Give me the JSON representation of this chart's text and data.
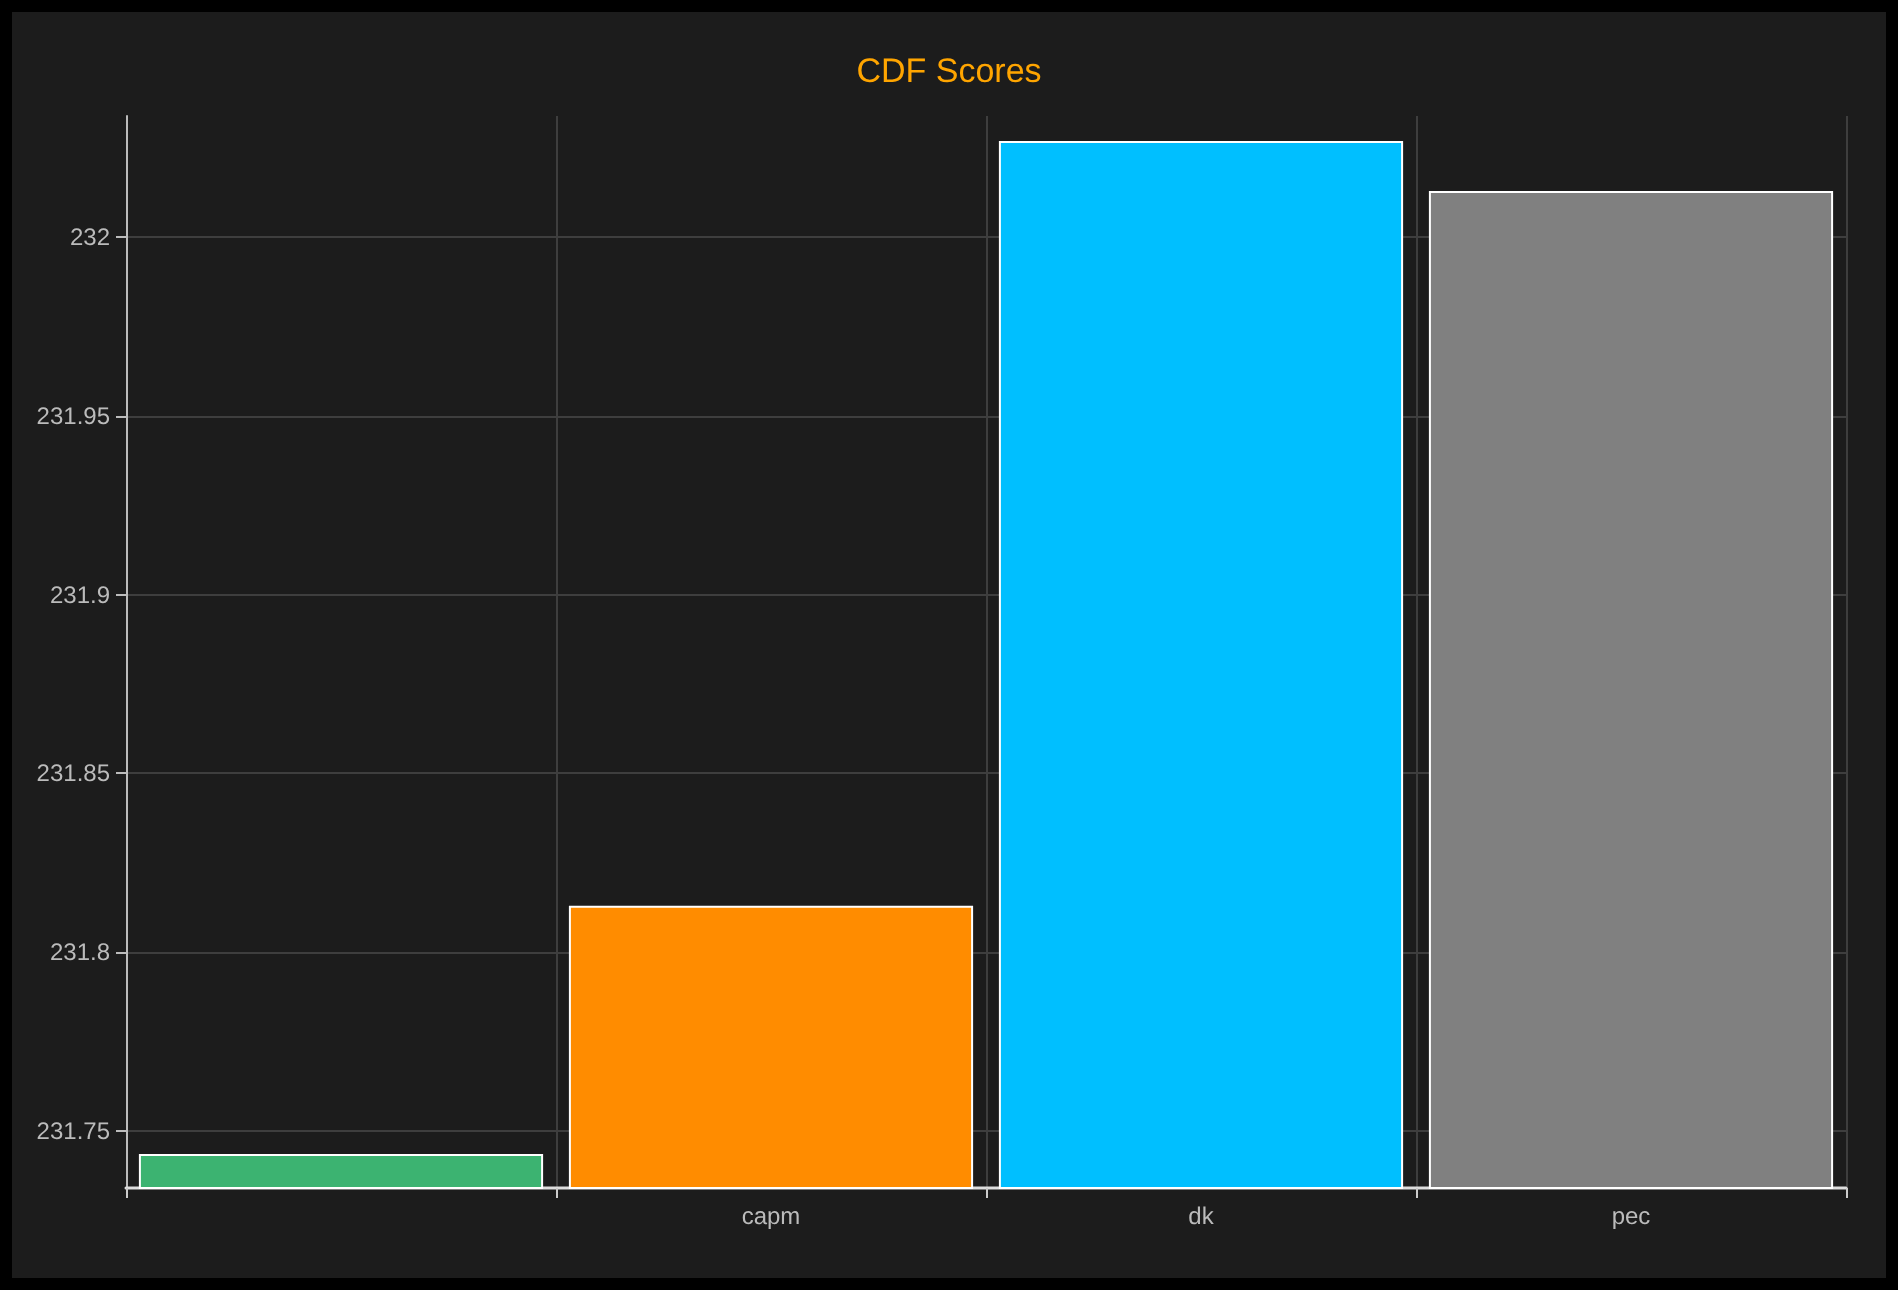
{
  "chart_data": {
    "type": "bar",
    "title": "CDF Scores",
    "categories": [
      null,
      "capm",
      "dk",
      "pec"
    ],
    "values": [
      231.7435,
      231.813,
      232.027,
      232.013
    ],
    "colors": [
      "#3cb371",
      "#ff8c00",
      "#00bfff",
      "#808080"
    ],
    "ylim": [
      231.734,
      232.034
    ],
    "yticks": [
      231.75,
      231.8,
      231.85,
      231.9,
      231.95,
      232
    ],
    "grid": true
  }
}
